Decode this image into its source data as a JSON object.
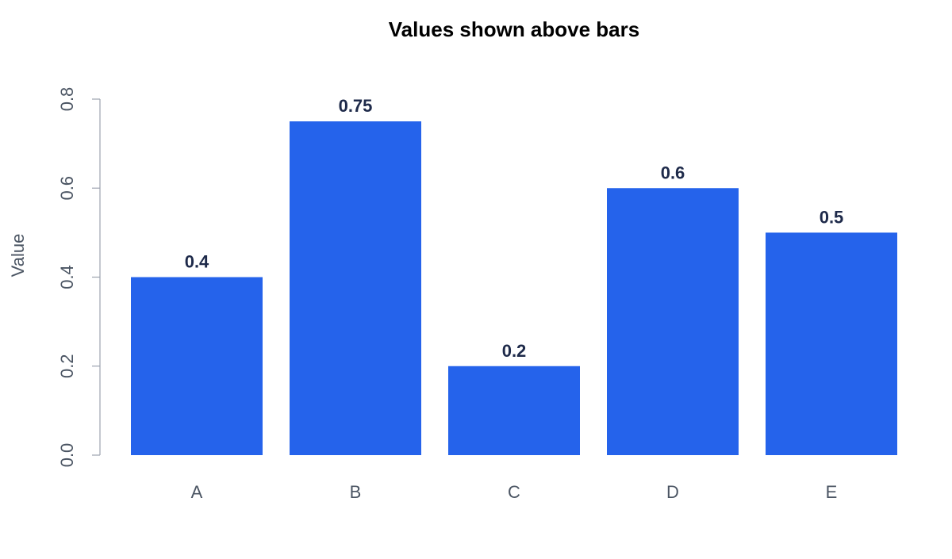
{
  "chart_data": {
    "type": "bar",
    "title": "Values shown above bars",
    "xlabel": "",
    "ylabel": "Value",
    "categories": [
      "A",
      "B",
      "C",
      "D",
      "E"
    ],
    "values": [
      0.4,
      0.75,
      0.2,
      0.6,
      0.5
    ],
    "value_labels": [
      "0.4",
      "0.75",
      "0.2",
      "0.6",
      "0.5"
    ],
    "ylim": [
      0,
      0.8
    ],
    "yticks": [
      0,
      0.2,
      0.4,
      0.6,
      0.8
    ],
    "ytick_labels": [
      "0.0",
      "0.2",
      "0.4",
      "0.6",
      "0.8"
    ],
    "grid": false,
    "legend": "none",
    "colors": {
      "bar": "#2563EB",
      "value_label": "#1E2A4A",
      "axis": "#9CA3AF",
      "tick_label": "#4B5563",
      "title": "#000000"
    }
  }
}
